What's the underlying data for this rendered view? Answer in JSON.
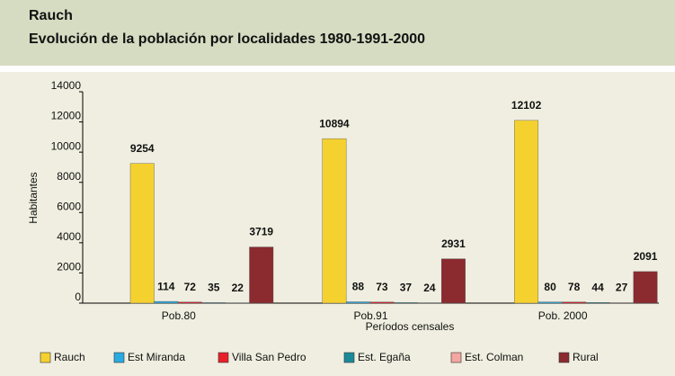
{
  "chart_data": {
    "type": "bar",
    "title": "Rauch",
    "subtitle": "Evolución de la población por localidades 1980-1991-2000",
    "y_label": "Habitantes",
    "x_label": "Períodos censales",
    "categories": [
      "Pob.80",
      "Pob.91",
      "Pob. 2000"
    ],
    "series": [
      {
        "name": "Rauch",
        "color": "#f5d130",
        "values": [
          9254,
          10894,
          12102
        ]
      },
      {
        "name": "Est Miranda",
        "color": "#29abe2",
        "values": [
          114,
          88,
          80
        ]
      },
      {
        "name": "Villa San Pedro",
        "color": "#e8202a",
        "values": [
          72,
          73,
          78
        ]
      },
      {
        "name": "Est. Egaña",
        "color": "#1a8a9a",
        "values": [
          35,
          37,
          44
        ]
      },
      {
        "name": "Est. Colman",
        "color": "#f4a6a0",
        "values": [
          22,
          24,
          27
        ]
      },
      {
        "name": "Rural",
        "color": "#8b2a2f",
        "values": [
          3719,
          2931,
          2091
        ]
      }
    ],
    "ylim": [
      0,
      14000
    ],
    "yticks": [
      0,
      2000,
      4000,
      6000,
      8000,
      10000,
      12000,
      14000
    ],
    "grid": false,
    "legend": "bottom"
  }
}
